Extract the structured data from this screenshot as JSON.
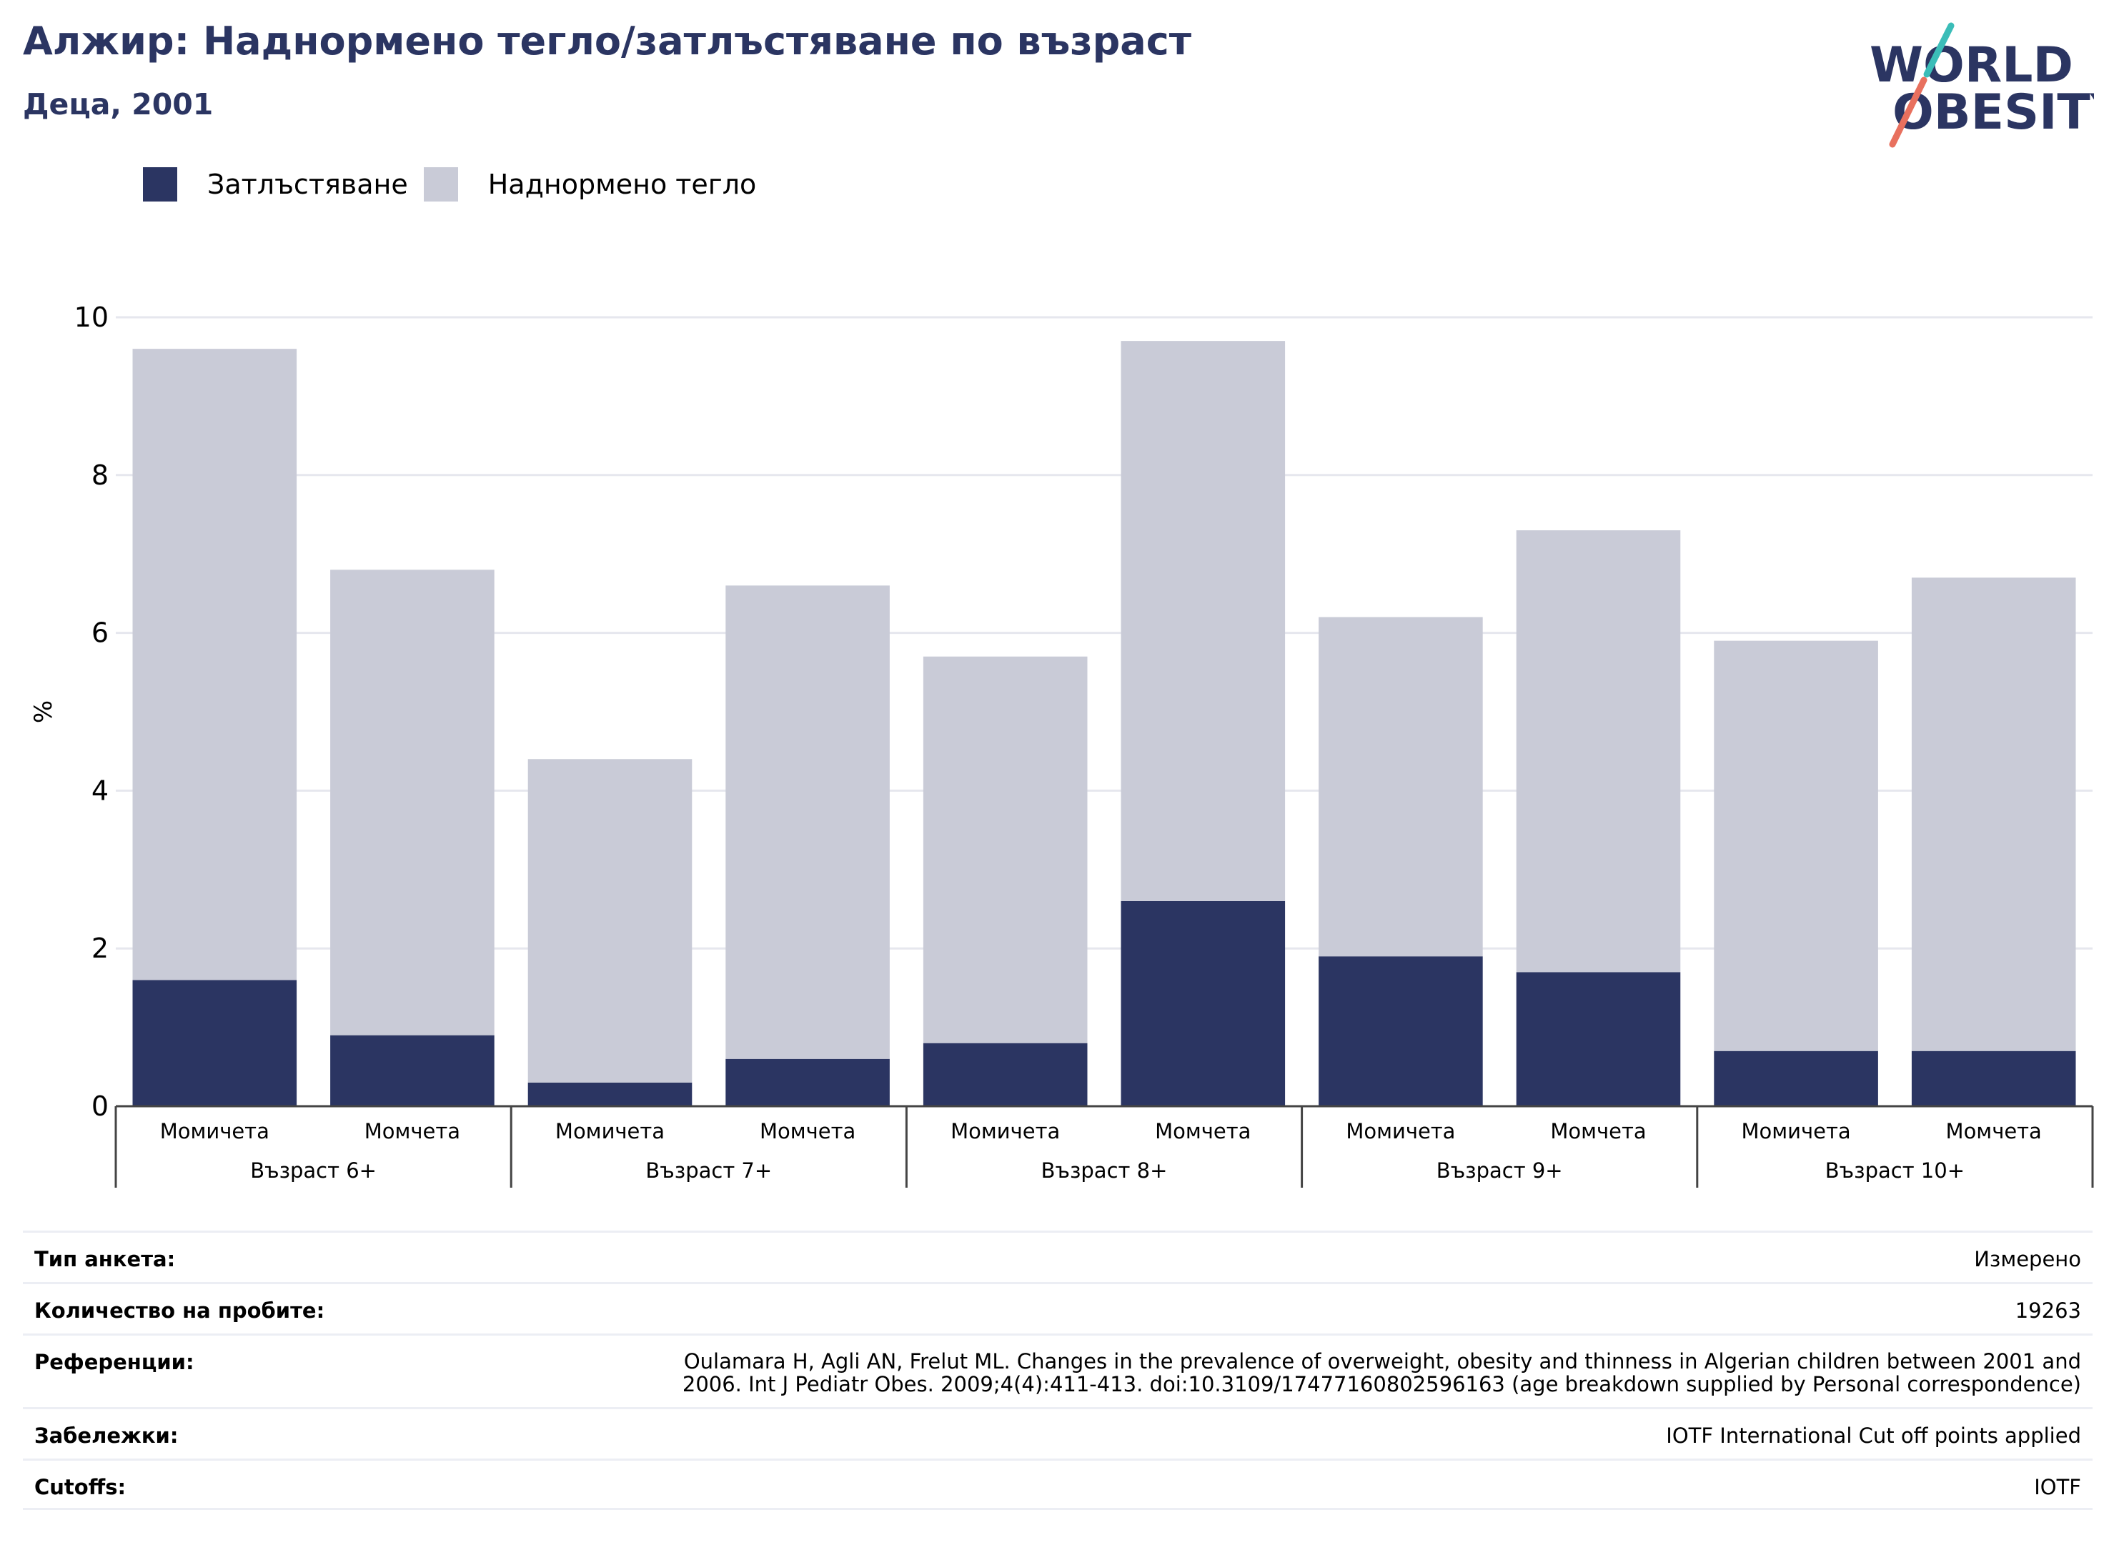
{
  "header": {
    "title": "Алжир: Наднормено тегло/затлъстяване по възраст",
    "subtitle": "Деца, 2001"
  },
  "logo": {
    "line1": "WORLD",
    "line2": "OBESITY"
  },
  "colors": {
    "obesity": "#2b3562",
    "overweight": "#c9cbd7",
    "title": "#2b3562",
    "logo_teal": "#3bbdb8",
    "logo_coral": "#e8705e"
  },
  "legend": [
    {
      "label": "Затлъстяване",
      "color": "#2b3562"
    },
    {
      "label": "Наднормено тегло",
      "color": "#c9cbd7"
    }
  ],
  "chart_data": {
    "type": "bar",
    "stacked": true,
    "ylabel": "%",
    "ylim": [
      0,
      10
    ],
    "yticks": [
      0,
      2,
      4,
      6,
      8,
      10
    ],
    "grid": true,
    "legend_position": "top-left",
    "groups": [
      "Възраст 6+",
      "Възраст 7+",
      "Възраст 8+",
      "Възраст 9+",
      "Възраст 10+"
    ],
    "subcategories": [
      "Момичета",
      "Момчета"
    ],
    "series": [
      {
        "name": "Затлъстяване",
        "values": [
          1.6,
          0.9,
          0.3,
          0.6,
          0.8,
          2.6,
          1.9,
          1.7,
          0.7,
          0.7
        ]
      },
      {
        "name": "Наднормено тегло",
        "values": [
          8.0,
          5.9,
          4.1,
          6.0,
          4.9,
          7.1,
          4.3,
          5.6,
          5.2,
          6.0
        ]
      }
    ]
  },
  "info": {
    "rows": [
      {
        "key": "Тип анкета:",
        "value": "Измерено"
      },
      {
        "key": "Количество на пробите:",
        "value": "19263"
      },
      {
        "key": "Референции:",
        "value": "Oulamara H, Agli AN, Frelut ML. Changes in the prevalence of overweight, obesity and thinness in Algerian children between 2001 and 2006. Int J Pediatr Obes. 2009;4(4):411-413. doi:10.3109/17477160802596163 (age breakdown supplied by Personal correspondence)"
      },
      {
        "key": "Забележки:",
        "value": "IOTF International Cut off points applied"
      },
      {
        "key": "Cutoffs:",
        "value": "IOTF"
      }
    ]
  }
}
